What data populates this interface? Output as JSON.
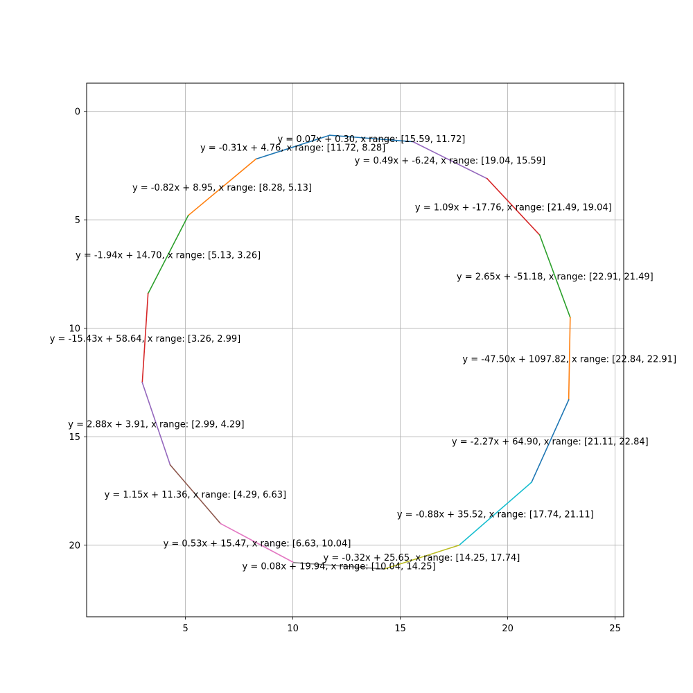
{
  "chart_data": {
    "type": "line",
    "title": "",
    "xlabel": "",
    "ylabel": "",
    "xlim": [
      0.4,
      25.4
    ],
    "ylim": [
      23.3,
      -1.3
    ],
    "y_inverted": true,
    "grid": true,
    "legend": "none",
    "x_ticks": [
      "5",
      "10",
      "15",
      "20",
      "25"
    ],
    "y_ticks": [
      "0",
      "5",
      "10",
      "15",
      "20"
    ],
    "segments": [
      {
        "label": "y = 0.07x + 0.30, x range: [15.59, 11.72]",
        "x": [
          11.72,
          15.59
        ],
        "y": [
          1.1,
          1.4
        ],
        "color": "#1f77b4"
      },
      {
        "label": "y = -0.31x + 4.76, x range: [11.72, 8.28]",
        "x": [
          8.28,
          11.72
        ],
        "y": [
          2.2,
          1.1
        ],
        "color": "#1f77b4"
      },
      {
        "label": "y = 0.49x + -6.24, x range: [19.04, 15.59]",
        "x": [
          15.59,
          19.04
        ],
        "y": [
          1.4,
          3.1
        ],
        "color": "#9467bd"
      },
      {
        "label": "y = -0.82x + 8.95, x range: [8.28, 5.13]",
        "x": [
          5.13,
          8.28
        ],
        "y": [
          4.8,
          2.2
        ],
        "color": "#ff7f0e"
      },
      {
        "label": "y = 1.09x + -17.76, x range: [21.49, 19.04]",
        "x": [
          19.04,
          21.49
        ],
        "y": [
          3.1,
          5.7
        ],
        "color": "#d62728"
      },
      {
        "label": "y = -1.94x + 14.70, x range: [5.13, 3.26]",
        "x": [
          3.26,
          5.13
        ],
        "y": [
          8.4,
          4.8
        ],
        "color": "#2ca02c"
      },
      {
        "label": "y = 2.65x + -51.18, x range: [22.91, 21.49]",
        "x": [
          21.49,
          22.91
        ],
        "y": [
          5.7,
          9.5
        ],
        "color": "#2ca02c"
      },
      {
        "label": "y = -15.43x + 58.64, x range: [3.26, 2.99]",
        "x": [
          2.99,
          3.26
        ],
        "y": [
          12.5,
          8.4
        ],
        "color": "#d62728"
      },
      {
        "label": "y = -47.50x + 1097.82, x range: [22.84, 22.91]",
        "x": [
          22.84,
          22.91
        ],
        "y": [
          13.3,
          9.5
        ],
        "color": "#ff7f0e"
      },
      {
        "label": "y = 2.88x + 3.91, x range: [2.99, 4.29]",
        "x": [
          2.99,
          4.29
        ],
        "y": [
          12.5,
          16.3
        ],
        "color": "#9467bd"
      },
      {
        "label": "y = -2.27x + 64.90, x range: [21.11, 22.84]",
        "x": [
          21.11,
          22.84
        ],
        "y": [
          17.1,
          13.3
        ],
        "color": "#1f77b4"
      },
      {
        "label": "y = 1.15x + 11.36, x range: [4.29, 6.63]",
        "x": [
          4.29,
          6.63
        ],
        "y": [
          16.3,
          19.0
        ],
        "color": "#8c564b"
      },
      {
        "label": "y = -0.88x + 35.52, x range: [17.74, 21.11]",
        "x": [
          17.74,
          21.11
        ],
        "y": [
          20.0,
          17.1
        ],
        "color": "#17becf"
      },
      {
        "label": "y = 0.53x + 15.47, x range: [6.63, 10.04]",
        "x": [
          6.63,
          10.04
        ],
        "y": [
          19.0,
          20.8
        ],
        "color": "#e377c2"
      },
      {
        "label": "y = -0.32x + 25.65, x range: [14.25, 17.74]",
        "x": [
          14.25,
          17.74
        ],
        "y": [
          21.1,
          20.0
        ],
        "color": "#bcbd22"
      },
      {
        "label": "y = 0.08x + 19.94, x range: [10.04, 14.25]",
        "x": [
          10.04,
          14.25
        ],
        "y": [
          20.8,
          21.1
        ],
        "color": "#7f7f7f"
      }
    ]
  }
}
